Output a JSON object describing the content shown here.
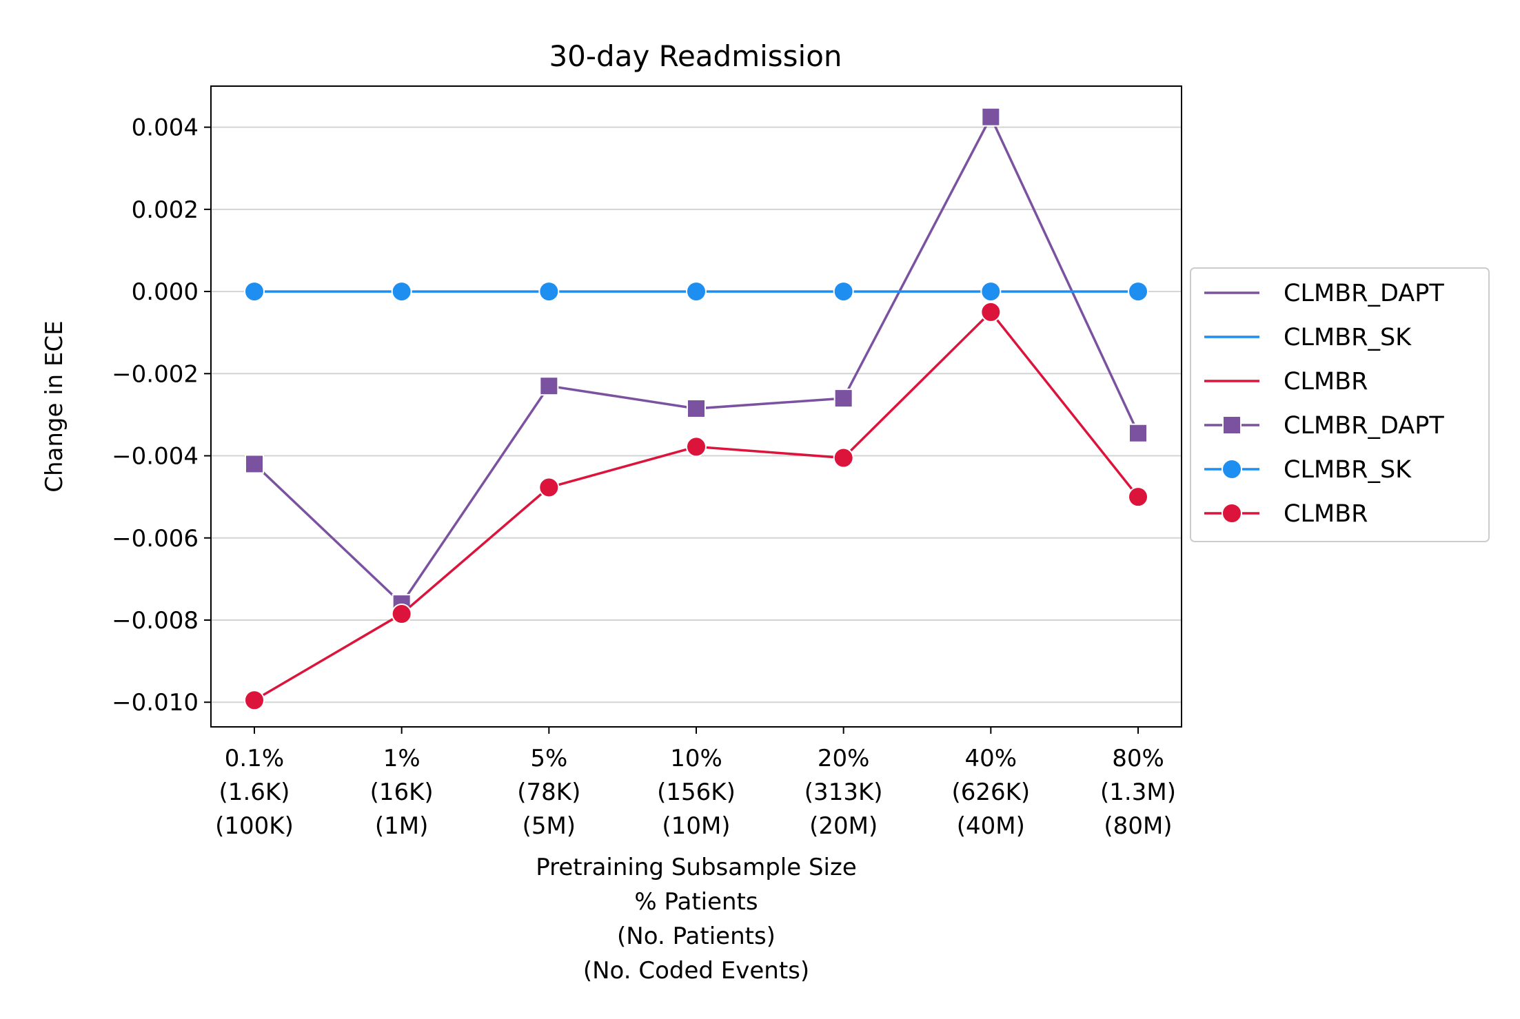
{
  "chart_data": {
    "type": "line",
    "title": "30-day Readmission",
    "xlabel": [
      "Pretraining Subsample Size",
      "% Patients",
      "(No. Patients)",
      "(No. Coded Events)"
    ],
    "ylabel": "Change in ECE",
    "categories": [
      [
        "0.1%",
        "(1.6K)",
        "(100K)"
      ],
      [
        "1%",
        "(16K)",
        "(1M)"
      ],
      [
        "5%",
        "(78K)",
        "(5M)"
      ],
      [
        "10%",
        "(156K)",
        "(10M)"
      ],
      [
        "20%",
        "(313K)",
        "(20M)"
      ],
      [
        "40%",
        "(626K)",
        "(40M)"
      ],
      [
        "80%",
        "(1.3M)",
        "(80M)"
      ]
    ],
    "ylim": [
      -0.0106,
      0.005
    ],
    "yticks": [
      0.004,
      0.002,
      0.0,
      -0.002,
      -0.004,
      -0.006,
      -0.008,
      -0.01
    ],
    "ytick_labels": [
      "0.004",
      "0.002",
      "0.000",
      "−0.002",
      "−0.004",
      "−0.006",
      "−0.008",
      "−0.010"
    ],
    "grid": "horizontal",
    "legend_position": "right-outside",
    "series": [
      {
        "name": "CLMBR_DAPT",
        "color": "#7b52a0",
        "marker": "square",
        "values": [
          -0.0042,
          -0.0076,
          -0.0023,
          -0.00285,
          -0.0026,
          0.00425,
          -0.00345
        ]
      },
      {
        "name": "CLMBR_SK",
        "color": "#1f8ef1",
        "marker": "circle",
        "values": [
          0.0,
          0.0,
          0.0,
          0.0,
          0.0,
          0.0,
          0.0
        ]
      },
      {
        "name": "CLMBR",
        "color": "#dc143c",
        "marker": "circle",
        "values": [
          -0.00995,
          -0.00785,
          -0.00477,
          -0.00378,
          -0.00405,
          -0.0005,
          -0.005
        ]
      }
    ],
    "legend_entries": [
      {
        "label": "CLMBR_DAPT",
        "color": "#7b52a0",
        "marker": "none"
      },
      {
        "label": "CLMBR_SK",
        "color": "#1f8ef1",
        "marker": "none"
      },
      {
        "label": "CLMBR",
        "color": "#dc143c",
        "marker": "none"
      },
      {
        "label": "CLMBR_DAPT",
        "color": "#7b52a0",
        "marker": "square"
      },
      {
        "label": "CLMBR_SK",
        "color": "#1f8ef1",
        "marker": "circle"
      },
      {
        "label": "CLMBR",
        "color": "#dc143c",
        "marker": "circle"
      }
    ]
  }
}
